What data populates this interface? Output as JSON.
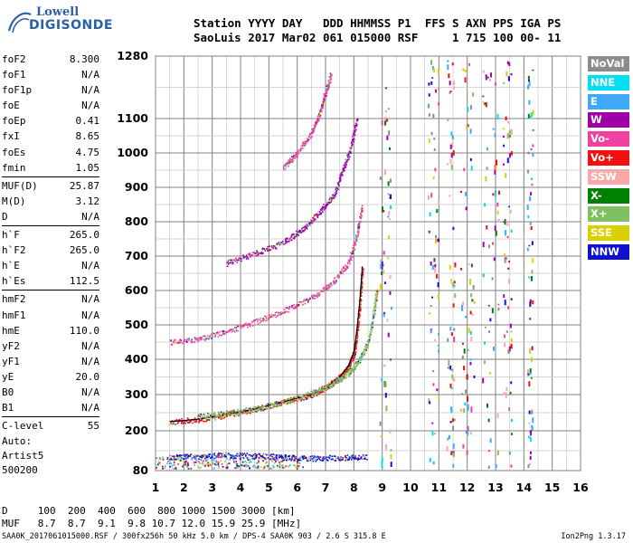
{
  "logo": {
    "line1": "Lowell",
    "line2": "DIGISONDE"
  },
  "header": {
    "line1": "Station YYYY DAY   DDD HHMMSS P1  FFS S AXN PPS IGA PS",
    "line2": "SaoLuis 2017 Mar02 061 015000 RSF     1 715 100 00- 11"
  },
  "params": [
    {
      "name": "foF2",
      "value": "8.300"
    },
    {
      "name": "foF1",
      "value": "N/A"
    },
    {
      "name": "foF1p",
      "value": "N/A"
    },
    {
      "name": "foE",
      "value": "N/A"
    },
    {
      "name": "foEp",
      "value": "0.41"
    },
    {
      "name": "fxI",
      "value": "8.65"
    },
    {
      "name": "foEs",
      "value": "4.75"
    },
    {
      "name": "fmin",
      "value": "1.05"
    },
    {
      "sep": true
    },
    {
      "name": "MUF(D)",
      "value": "25.87"
    },
    {
      "name": "M(D)",
      "value": "3.12"
    },
    {
      "name": "D",
      "value": "N/A"
    },
    {
      "sep": true
    },
    {
      "name": "h`F",
      "value": "265.0"
    },
    {
      "name": "h`F2",
      "value": "265.0"
    },
    {
      "name": "h`E",
      "value": "N/A"
    },
    {
      "name": "h`Es",
      "value": "112.5"
    },
    {
      "sep": true
    },
    {
      "name": "hmF2",
      "value": "N/A"
    },
    {
      "name": "hmF1",
      "value": "N/A"
    },
    {
      "name": "hmE",
      "value": "110.0"
    },
    {
      "name": "yF2",
      "value": "N/A"
    },
    {
      "name": "yF1",
      "value": "N/A"
    },
    {
      "name": "yE",
      "value": "20.0"
    },
    {
      "name": "B0",
      "value": "N/A"
    },
    {
      "name": "B1",
      "value": "N/A"
    },
    {
      "sep": true
    },
    {
      "name": "C-level",
      "value": "55"
    }
  ],
  "auto": {
    "line1": "Auto:",
    "line2": "Artist5",
    "line3": "500200"
  },
  "legend": [
    {
      "label": "NoVal",
      "color": "#8c8c8c"
    },
    {
      "label": "NNE",
      "color": "#00e0f0"
    },
    {
      "label": "E",
      "color": "#40a8f8"
    },
    {
      "label": "W",
      "color": "#a000a8"
    },
    {
      "label": "Vo-",
      "color": "#f040a0"
    },
    {
      "label": "Vo+",
      "color": "#f01010"
    },
    {
      "label": "SSW",
      "color": "#f8a8a8"
    },
    {
      "label": "X-",
      "color": "#008000"
    },
    {
      "label": "X+",
      "color": "#80c060"
    },
    {
      "label": "SSE",
      "color": "#d8d000"
    },
    {
      "label": "NNW",
      "color": "#1010d0"
    }
  ],
  "dmuf": {
    "d_line": "D     100  200  400  600  800 1000 1500 3000 [km]",
    "muf_line": "MUF   8.7  8.7  9.1  9.8 10.7 12.0 15.9 25.9 [MHz]"
  },
  "footer": {
    "left": "SAA0K_2017061015000.RSF / 300fx256h 50 kHz 5.0 km / DPS-4 SAA0K 903 / 2.6 S 315.8 E",
    "right": "Ion2Png 1.3.17"
  },
  "chart_data": {
    "type": "scatter",
    "x_ticks": [
      "1",
      "2",
      "3",
      "4",
      "5",
      "6",
      "7",
      "8",
      "9",
      "10",
      "11",
      "12",
      "13",
      "14",
      "15",
      "16"
    ],
    "y_ticks": [
      "80",
      "200",
      "300",
      "400",
      "500",
      "600",
      "700",
      "800",
      "900",
      "1000",
      "1100",
      "1280"
    ],
    "xlim": [
      1,
      16
    ],
    "ylim": [
      80,
      1280
    ],
    "grid": true,
    "legend_position": "right",
    "traces": [
      {
        "name": "F2 O-trace (Vo+)",
        "color": "#f01010",
        "points": [
          [
            1.5,
            225
          ],
          [
            2.5,
            232
          ],
          [
            3.5,
            245
          ],
          [
            4.5,
            260
          ],
          [
            5.5,
            280
          ],
          [
            6.5,
            300
          ],
          [
            7.0,
            320
          ],
          [
            7.5,
            350
          ],
          [
            7.8,
            380
          ],
          [
            8.0,
            420
          ],
          [
            8.1,
            480
          ],
          [
            8.2,
            560
          ],
          [
            8.3,
            670
          ]
        ]
      },
      {
        "name": "F2 X-trace (X+)",
        "color": "#80c060",
        "points": [
          [
            2.5,
            240
          ],
          [
            3.5,
            250
          ],
          [
            4.5,
            262
          ],
          [
            5.5,
            280
          ],
          [
            6.5,
            305
          ],
          [
            7.2,
            330
          ],
          [
            7.8,
            360
          ],
          [
            8.2,
            400
          ],
          [
            8.5,
            450
          ],
          [
            8.7,
            540
          ],
          [
            8.8,
            600
          ]
        ]
      },
      {
        "name": "2F echo (Vo-)",
        "color": "#f040a0",
        "points": [
          [
            1.5,
            450
          ],
          [
            2.5,
            460
          ],
          [
            3.5,
            480
          ],
          [
            4.5,
            510
          ],
          [
            5.5,
            540
          ],
          [
            6.5,
            580
          ],
          [
            7.2,
            620
          ],
          [
            7.8,
            680
          ],
          [
            8.1,
            760
          ],
          [
            8.3,
            850
          ]
        ]
      },
      {
        "name": "3F echo (W)",
        "color": "#a000a8",
        "points": [
          [
            3.5,
            680
          ],
          [
            4.5,
            710
          ],
          [
            5.5,
            740
          ],
          [
            6.2,
            780
          ],
          [
            6.8,
            830
          ],
          [
            7.3,
            880
          ],
          [
            7.6,
            950
          ],
          [
            7.9,
            1020
          ],
          [
            8.1,
            1100
          ]
        ]
      },
      {
        "name": "4F echo (Vo-)",
        "color": "#f040a0",
        "points": [
          [
            5.5,
            960
          ],
          [
            6.0,
            1000
          ],
          [
            6.5,
            1060
          ],
          [
            6.8,
            1120
          ],
          [
            7.0,
            1180
          ],
          [
            7.2,
            1230
          ]
        ]
      },
      {
        "name": "Es echo (NNW)",
        "color": "#1010d0",
        "points": [
          [
            1.5,
            120
          ],
          [
            2.5,
            125
          ],
          [
            3.5,
            128
          ],
          [
            4.5,
            125
          ],
          [
            5.5,
            122
          ],
          [
            6.5,
            118
          ],
          [
            7.5,
            120
          ],
          [
            8.5,
            122
          ]
        ]
      }
    ]
  }
}
